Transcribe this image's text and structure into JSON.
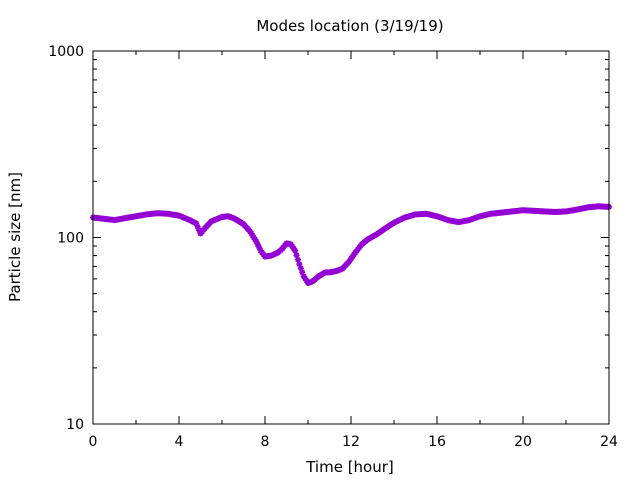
{
  "chart_data": {
    "type": "scatter",
    "title": "Modes location (3/19/19)",
    "xlabel": "Time [hour]",
    "ylabel": "Particle size [nm]",
    "xlim": [
      0,
      24
    ],
    "ylim": [
      10,
      1000
    ],
    "yscale": "log",
    "grid": false,
    "x_ticks": [
      0,
      4,
      8,
      12,
      16,
      20,
      24
    ],
    "x_tick_labels": [
      "0",
      "4",
      "8",
      "12",
      "16",
      "20",
      "24"
    ],
    "y_ticks": [
      10,
      100,
      1000
    ],
    "y_tick_labels": [
      "10",
      "100",
      "1000"
    ],
    "marker_color": "#9400d3",
    "series": [
      {
        "x": [
          0,
          0.5,
          1,
          1.5,
          2,
          2.5,
          3,
          3.5,
          4,
          4.5,
          4.8,
          5.0,
          5.2,
          5.5,
          6.0,
          6.3,
          6.6,
          7.0,
          7.3,
          7.6,
          7.8,
          8.0,
          8.3,
          8.6,
          8.8,
          9.0,
          9.2,
          9.4,
          9.6,
          9.8,
          10.0,
          10.2,
          10.5,
          10.8,
          11.0,
          11.3,
          11.6,
          11.9,
          12.2,
          12.5,
          12.8,
          13.2,
          13.6,
          14.0,
          14.5,
          15.0,
          15.5,
          16.0,
          16.5,
          17.0,
          17.5,
          18.0,
          18.5,
          19.0,
          19.5,
          20.0,
          20.5,
          21.0,
          21.5,
          22.0,
          22.5,
          23.0,
          23.5,
          24.0
        ],
        "y": [
          128,
          126,
          124,
          127,
          130,
          133,
          135,
          134,
          131,
          124,
          119,
          105,
          112,
          122,
          129,
          130,
          126,
          118,
          108,
          95,
          85,
          79,
          80,
          83,
          87,
          93,
          92,
          85,
          72,
          62,
          57,
          58,
          62,
          65,
          65,
          66,
          68,
          74,
          83,
          92,
          98,
          104,
          112,
          120,
          128,
          133,
          134,
          130,
          124,
          121,
          124,
          130,
          134,
          136,
          138,
          140,
          139,
          138,
          137,
          138,
          141,
          145,
          147,
          146
        ]
      }
    ]
  }
}
